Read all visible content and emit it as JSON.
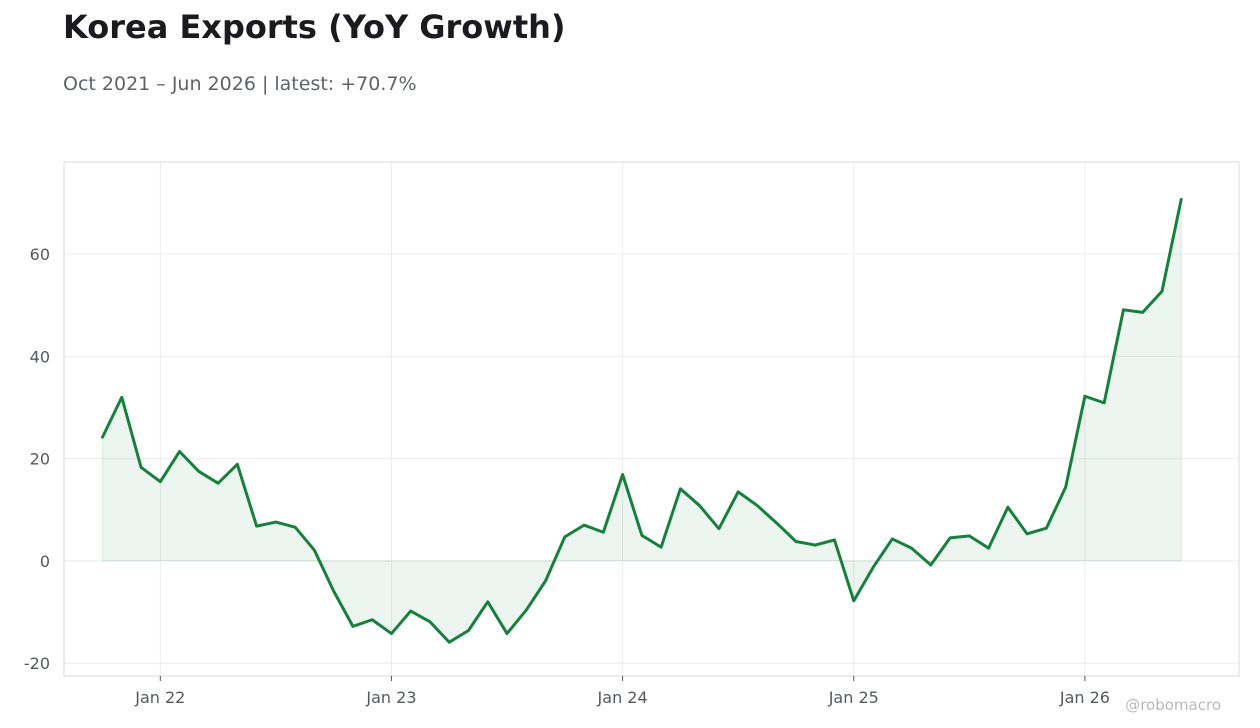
{
  "header": {
    "title": "Korea Exports (YoY Growth)",
    "subtitle": "Oct 2021 – Jun 2026 | latest: +70.7%"
  },
  "watermark": "@robomacro",
  "colors": {
    "line": "#17803d",
    "fill": "#17803d",
    "grid": "#ececec",
    "axis_frame": "#d9d9d9",
    "title_text": "#1b1b1f",
    "muted_text": "#5f6368"
  },
  "chart_data": {
    "type": "area",
    "title": "Korea Exports (YoY Growth)",
    "subtitle": "Oct 2021 – Jun 2026 | latest: +70.7%",
    "xlabel": "",
    "ylabel": "",
    "x_start": "2021-10",
    "x_end": "2026-06",
    "xlim": [
      "2021-08",
      "2026-09"
    ],
    "ylim": [
      -22.5,
      78
    ],
    "grid": true,
    "x_ticks": [
      {
        "date": "2022-01",
        "label": "Jan 22"
      },
      {
        "date": "2023-01",
        "label": "Jan 23"
      },
      {
        "date": "2024-01",
        "label": "Jan 24"
      },
      {
        "date": "2025-01",
        "label": "Jan 25"
      },
      {
        "date": "2026-01",
        "label": "Jan 26"
      }
    ],
    "y_ticks": [
      {
        "value": -20,
        "label": "-20"
      },
      {
        "value": 0,
        "label": "0"
      },
      {
        "value": 20,
        "label": "20"
      },
      {
        "value": 40,
        "label": "40"
      },
      {
        "value": 60,
        "label": "60"
      }
    ],
    "series": [
      {
        "x": [
          "2021-10",
          "2021-11",
          "2021-12",
          "2022-01",
          "2022-02",
          "2022-03",
          "2022-04",
          "2022-05",
          "2022-06",
          "2022-07",
          "2022-08",
          "2022-09",
          "2022-10",
          "2022-11",
          "2022-12",
          "2023-01",
          "2023-02",
          "2023-03",
          "2023-04",
          "2023-05",
          "2023-06",
          "2023-07",
          "2023-08",
          "2023-09",
          "2023-10",
          "2023-11",
          "2023-12",
          "2024-01",
          "2024-02",
          "2024-03",
          "2024-04",
          "2024-05",
          "2024-06",
          "2024-07",
          "2024-08",
          "2024-09",
          "2024-10",
          "2024-11",
          "2024-12",
          "2025-01",
          "2025-02",
          "2025-03",
          "2025-04",
          "2025-05",
          "2025-06",
          "2025-07",
          "2025-08",
          "2025-09",
          "2025-10",
          "2025-11",
          "2025-12",
          "2026-01",
          "2026-02",
          "2026-03",
          "2026-04",
          "2026-05",
          "2026-06"
        ],
        "values": [
          24.2,
          32.0,
          18.3,
          15.5,
          21.4,
          17.5,
          15.2,
          18.9,
          6.8,
          7.6,
          6.6,
          2.1,
          -5.9,
          -12.8,
          -11.5,
          -14.2,
          -9.8,
          -11.9,
          -15.9,
          -13.6,
          -8.0,
          -14.2,
          -9.6,
          -3.9,
          4.7,
          7.0,
          5.6,
          16.9,
          5.0,
          2.7,
          14.1,
          10.8,
          6.3,
          13.5,
          10.8,
          7.4,
          3.8,
          3.1,
          4.1,
          -7.8,
          -1.3,
          4.3,
          2.5,
          -0.8,
          4.5,
          4.9,
          2.5,
          10.5,
          5.3,
          6.4,
          14.4,
          32.2,
          30.9,
          49.1,
          48.6,
          52.7,
          70.7
        ]
      }
    ]
  }
}
